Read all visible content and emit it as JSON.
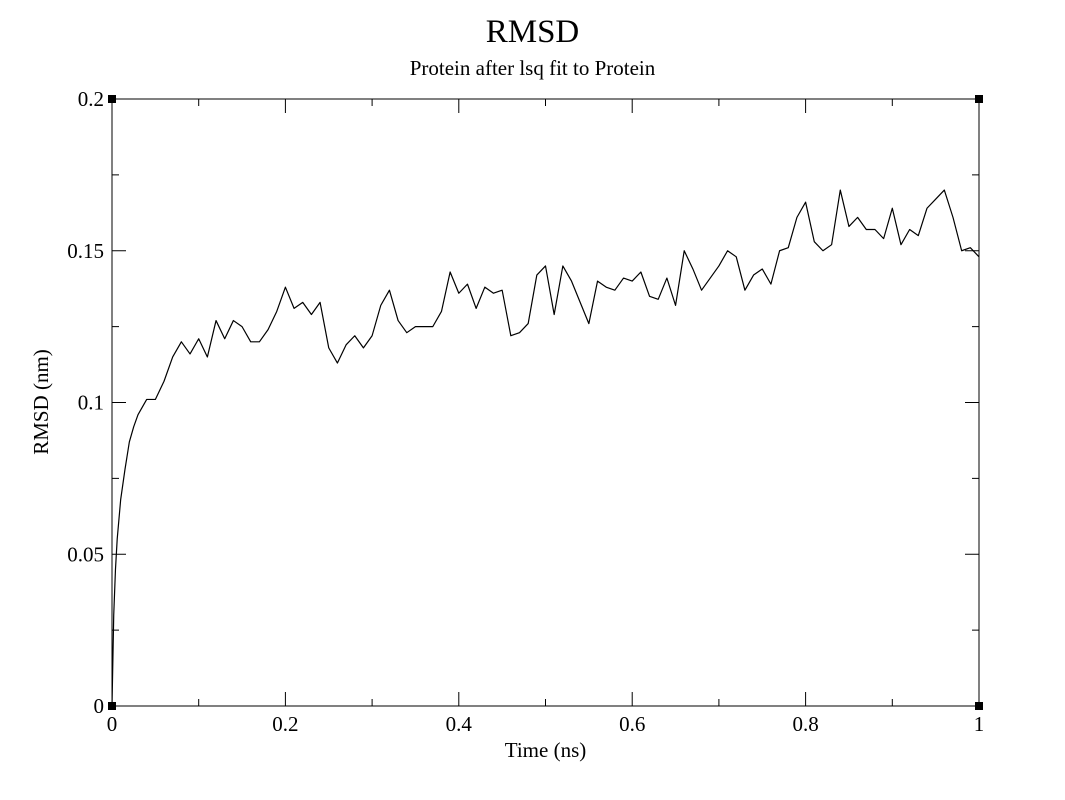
{
  "chart_data": {
    "type": "line",
    "title": "RMSD",
    "subtitle": "Protein after lsq fit to Protein",
    "xlabel": "Time (ns)",
    "ylabel": "RMSD (nm)",
    "xlim": [
      0,
      1
    ],
    "ylim": [
      0,
      0.2
    ],
    "x_ticks": [
      0,
      0.2,
      0.4,
      0.6,
      0.8,
      1
    ],
    "x_tick_labels": [
      "0",
      "0.2",
      "0.4",
      "0.6",
      "0.8",
      "1"
    ],
    "y_ticks": [
      0,
      0.05,
      0.1,
      0.15,
      0.2
    ],
    "y_tick_labels": [
      "0",
      "0.05",
      "0.1",
      "0.15",
      "0.2"
    ],
    "grid": false,
    "legend": "none",
    "line_color": "#000000",
    "x": [
      0,
      0.002,
      0.004,
      0.006,
      0.01,
      0.015,
      0.02,
      0.025,
      0.03,
      0.04,
      0.05,
      0.06,
      0.07,
      0.08,
      0.09,
      0.1,
      0.11,
      0.12,
      0.13,
      0.14,
      0.15,
      0.16,
      0.17,
      0.18,
      0.19,
      0.2,
      0.21,
      0.22,
      0.23,
      0.24,
      0.25,
      0.26,
      0.27,
      0.28,
      0.29,
      0.3,
      0.31,
      0.32,
      0.33,
      0.34,
      0.35,
      0.36,
      0.37,
      0.38,
      0.39,
      0.4,
      0.41,
      0.42,
      0.43,
      0.44,
      0.45,
      0.46,
      0.47,
      0.48,
      0.49,
      0.5,
      0.51,
      0.52,
      0.53,
      0.54,
      0.55,
      0.56,
      0.57,
      0.58,
      0.59,
      0.6,
      0.61,
      0.62,
      0.63,
      0.64,
      0.65,
      0.66,
      0.67,
      0.68,
      0.69,
      0.7,
      0.71,
      0.72,
      0.73,
      0.74,
      0.75,
      0.76,
      0.77,
      0.78,
      0.79,
      0.8,
      0.81,
      0.82,
      0.83,
      0.84,
      0.85,
      0.86,
      0.87,
      0.88,
      0.89,
      0.9,
      0.91,
      0.92,
      0.93,
      0.94,
      0.95,
      0.96,
      0.97,
      0.98,
      0.99,
      1.0
    ],
    "values": [
      0.0,
      0.03,
      0.045,
      0.055,
      0.068,
      0.078,
      0.087,
      0.092,
      0.096,
      0.101,
      0.101,
      0.107,
      0.115,
      0.12,
      0.116,
      0.121,
      0.115,
      0.127,
      0.121,
      0.127,
      0.125,
      0.12,
      0.12,
      0.124,
      0.13,
      0.138,
      0.131,
      0.133,
      0.129,
      0.133,
      0.118,
      0.113,
      0.119,
      0.122,
      0.118,
      0.122,
      0.132,
      0.137,
      0.127,
      0.123,
      0.125,
      0.125,
      0.125,
      0.13,
      0.143,
      0.136,
      0.139,
      0.131,
      0.138,
      0.136,
      0.137,
      0.122,
      0.123,
      0.126,
      0.142,
      0.145,
      0.129,
      0.145,
      0.14,
      0.133,
      0.126,
      0.14,
      0.138,
      0.137,
      0.141,
      0.14,
      0.143,
      0.135,
      0.134,
      0.141,
      0.132,
      0.15,
      0.144,
      0.137,
      0.141,
      0.145,
      0.15,
      0.148,
      0.137,
      0.142,
      0.144,
      0.139,
      0.15,
      0.151,
      0.161,
      0.166,
      0.153,
      0.15,
      0.152,
      0.17,
      0.158,
      0.161,
      0.157,
      0.157,
      0.154,
      0.164,
      0.152,
      0.157,
      0.155,
      0.164,
      0.167,
      0.17,
      0.161,
      0.15,
      0.151,
      0.148
    ]
  }
}
